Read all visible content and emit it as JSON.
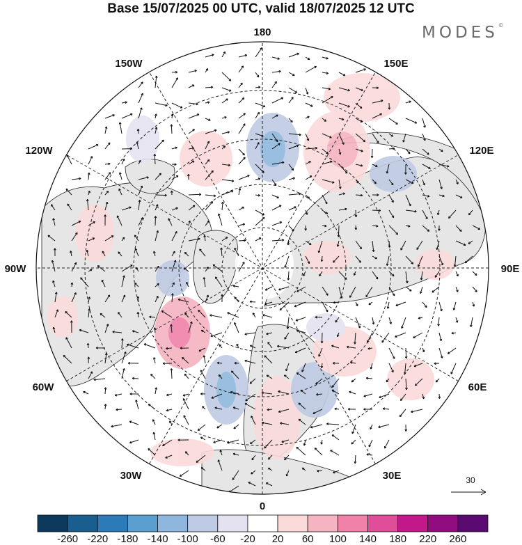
{
  "header": {
    "title": "Base 15/07/2025 00 UTC, valid 18/07/2025 12 UTC",
    "brand": "MODES",
    "brand_mark": "©"
  },
  "map": {
    "projection": "north-polar-stereographic",
    "longitude_labels": {
      "top": "180",
      "bottom": "0",
      "left": "90W",
      "right": "90E",
      "upper_left_1": "150W",
      "upper_left_2": "120W",
      "lower_left_1": "60W",
      "lower_left_2": "30W",
      "upper_right_1": "150E",
      "upper_right_2": "120E",
      "lower_right_1": "60E",
      "lower_right_2": "30E"
    },
    "wind_reference_value": "30"
  },
  "colorbar": {
    "colors": [
      "#0d3a5c",
      "#1a5d8f",
      "#2c7bb8",
      "#5b9fd0",
      "#8fb7dd",
      "#bfcbe4",
      "#e4e2f0",
      "#ffffff",
      "#fbdada",
      "#f6b3c1",
      "#f081a9",
      "#e04e9a",
      "#c2188a",
      "#900c7f",
      "#5a0a70"
    ],
    "labels": [
      "-260",
      "-220",
      "-180",
      "-140",
      "-100",
      "-60",
      "-20",
      "20",
      "60",
      "100",
      "140",
      "180",
      "220",
      "260"
    ]
  }
}
